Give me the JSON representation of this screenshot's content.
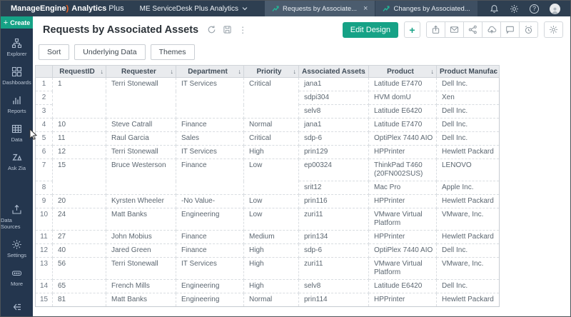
{
  "colors": {
    "accent_teal": "#16a286",
    "topbar_bg": "#2e3f51",
    "sidebar_bg": "#24364e",
    "logo_swoosh_orange": "#ee6224",
    "table_header_bg": "#e9ebee"
  },
  "icons": {
    "plus": "+",
    "close": "×",
    "kebab": "⋮",
    "sort_arrow": "↓",
    "help": "?"
  },
  "topbar": {
    "brand": {
      "company": "ManageEngine",
      "swoosh": ")",
      "product": "Analytics",
      "suffix": "Plus"
    },
    "workspace": "ME ServiceDesk Plus Analytics",
    "tabs": [
      {
        "label": "Requests by Associate...",
        "active": true,
        "closable": true
      },
      {
        "label": "Changes by Associated...",
        "active": false,
        "closable": false
      }
    ]
  },
  "sidebar": {
    "create_label": "Create",
    "items": [
      {
        "label": "Explorer"
      },
      {
        "label": "Dashboards"
      },
      {
        "label": "Reports"
      },
      {
        "label": "Data"
      },
      {
        "label": "Ask Zia"
      },
      {
        "label": "Data Sources"
      },
      {
        "label": "Settings"
      },
      {
        "label": "More"
      }
    ]
  },
  "header": {
    "title": "Requests by Associated Assets",
    "edit_design_label": "Edit Design"
  },
  "toolbar": {
    "buttons": [
      "Sort",
      "Underlying Data",
      "Themes"
    ]
  },
  "table": {
    "columns": [
      "RequestID",
      "Requester",
      "Department",
      "Priority",
      "Associated Assets",
      "Product",
      "Product Manufac"
    ],
    "rows": [
      {
        "num": "1",
        "request_id": "1",
        "requester": "Terri Stonewall",
        "department": "IT Services",
        "priority": "Critical",
        "asset": "jana1",
        "product": "Latitude E7470",
        "manufacturer": "Dell Inc.",
        "group_size": 3
      },
      {
        "num": "2",
        "continuation": true,
        "asset": "sdpi304",
        "product": "HVM domU",
        "manufacturer": "Xen"
      },
      {
        "num": "3",
        "continuation": true,
        "asset": "selv8",
        "product": "Latitude E6420",
        "manufacturer": "Dell Inc."
      },
      {
        "num": "4",
        "request_id": "10",
        "requester": "Steve Catrall",
        "department": "Finance",
        "priority": "Normal",
        "asset": "jana1",
        "product": "Latitude E7470",
        "manufacturer": "Dell Inc."
      },
      {
        "num": "5",
        "request_id": "11",
        "requester": "Raul Garcia",
        "department": "Sales",
        "priority": "Critical",
        "asset": "sdp-6",
        "product": "OptiPlex 7440 AIO",
        "manufacturer": "Dell Inc."
      },
      {
        "num": "6",
        "request_id": "12",
        "requester": "Terri Stonewall",
        "department": "IT Services",
        "priority": "High",
        "asset": "prin129",
        "product": "HPPrinter",
        "manufacturer": "Hewlett Packard"
      },
      {
        "num": "7",
        "request_id": "15",
        "requester": "Bruce Westerson",
        "department": "Finance",
        "priority": "Low",
        "asset": "ep00324",
        "product": "ThinkPad T460 (20FN002SUS)",
        "manufacturer": "LENOVO",
        "group_size": 2
      },
      {
        "num": "8",
        "continuation": true,
        "asset": "srit12",
        "product": "Mac Pro",
        "manufacturer": "Apple Inc."
      },
      {
        "num": "9",
        "request_id": "20",
        "requester": "Kyrsten Wheeler",
        "department": "-No Value-",
        "priority": "Low",
        "asset": "prin116",
        "product": "HPPrinter",
        "manufacturer": "Hewlett Packard"
      },
      {
        "num": "10",
        "request_id": "24",
        "requester": "Matt Banks",
        "department": "Engineering",
        "priority": "Low",
        "asset": "zuri11",
        "product": "VMware Virtual Platform",
        "manufacturer": "VMware, Inc."
      },
      {
        "num": "11",
        "request_id": "27",
        "requester": "John Mobius",
        "department": "Finance",
        "priority": "Medium",
        "asset": "prin134",
        "product": "HPPrinter",
        "manufacturer": "Hewlett Packard"
      },
      {
        "num": "12",
        "request_id": "40",
        "requester": "Jared Green",
        "department": "Finance",
        "priority": "High",
        "asset": "sdp-6",
        "product": "OptiPlex 7440 AIO",
        "manufacturer": "Dell Inc."
      },
      {
        "num": "13",
        "request_id": "56",
        "requester": "Terri Stonewall",
        "department": "IT Services",
        "priority": "High",
        "asset": "zuri11",
        "product": "VMware Virtual Platform",
        "manufacturer": "VMware, Inc."
      },
      {
        "num": "14",
        "request_id": "65",
        "requester": "French Mills",
        "department": "Engineering",
        "priority": "High",
        "asset": "selv8",
        "product": "Latitude E6420",
        "manufacturer": "Dell Inc."
      },
      {
        "num": "15",
        "request_id": "81",
        "requester": "Matt Banks",
        "department": "Engineering",
        "priority": "Normal",
        "asset": "prin114",
        "product": "HPPrinter",
        "manufacturer": "Hewlett Packard"
      }
    ]
  }
}
